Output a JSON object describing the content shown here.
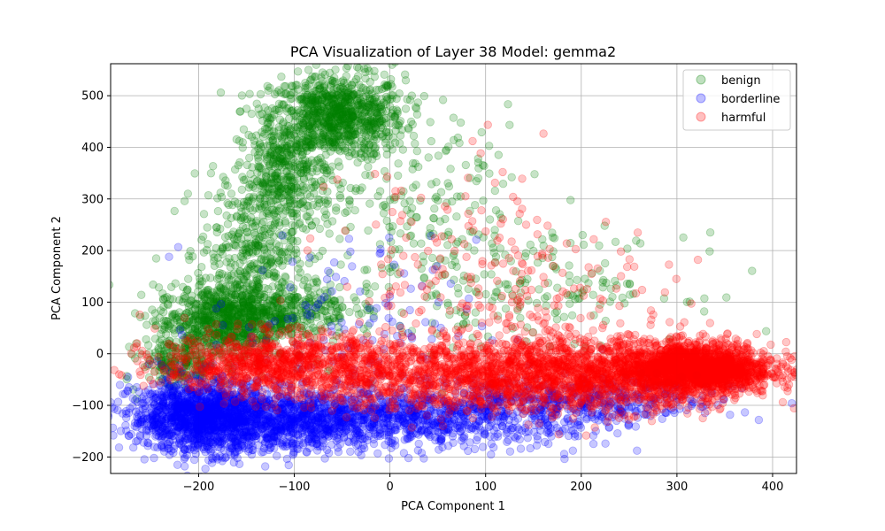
{
  "chart_data": {
    "type": "scatter",
    "title": "PCA Visualization of Layer 38 Model: gemma2",
    "xlabel": "PCA Component 1",
    "ylabel": "PCA Component 2",
    "xlim": [
      -292,
      425
    ],
    "ylim": [
      -232,
      562
    ],
    "xticks": [
      -200,
      -100,
      0,
      100,
      200,
      300,
      400
    ],
    "yticks": [
      -200,
      -100,
      0,
      100,
      200,
      300,
      400,
      500
    ],
    "xtick_labels": [
      "−200",
      "−100",
      "0",
      "100",
      "200",
      "300",
      "400"
    ],
    "ytick_labels": [
      "−200",
      "−100",
      "0",
      "100",
      "200",
      "300",
      "400",
      "500"
    ],
    "grid": true,
    "legend_position": "top-right",
    "marker_alpha": 0.22,
    "series": [
      {
        "name": "benign",
        "color": "#008000",
        "clusters": [
          {
            "cx": -55,
            "cy": 460,
            "sx": 35,
            "sy": 40,
            "n": 900
          },
          {
            "cx": -110,
            "cy": 340,
            "sx": 25,
            "sy": 60,
            "n": 450
          },
          {
            "cx": -150,
            "cy": 200,
            "sx": 25,
            "sy": 60,
            "n": 300
          },
          {
            "cx": -175,
            "cy": 60,
            "sx": 35,
            "sy": 35,
            "n": 700
          },
          {
            "cx": -120,
            "cy": 90,
            "sx": 40,
            "sy": 30,
            "n": 400
          },
          {
            "cx": 30,
            "cy": 250,
            "sx": 70,
            "sy": 120,
            "n": 260
          },
          {
            "cx": 170,
            "cy": 130,
            "sx": 70,
            "sy": 50,
            "n": 140
          },
          {
            "cx": -220,
            "cy": -20,
            "sx": 20,
            "sy": 25,
            "n": 200
          }
        ]
      },
      {
        "name": "borderline",
        "color": "#0000ff",
        "clusters": [
          {
            "cx": -200,
            "cy": -120,
            "sx": 35,
            "sy": 35,
            "n": 1200
          },
          {
            "cx": -110,
            "cy": -130,
            "sx": 60,
            "sy": 30,
            "n": 1000
          },
          {
            "cx": 50,
            "cy": -120,
            "sx": 90,
            "sy": 30,
            "n": 900
          },
          {
            "cx": 220,
            "cy": -90,
            "sx": 70,
            "sy": 22,
            "n": 300
          },
          {
            "cx": -50,
            "cy": 60,
            "sx": 70,
            "sy": 80,
            "n": 120
          }
        ]
      },
      {
        "name": "harmful",
        "color": "#ff0000",
        "clusters": [
          {
            "cx": 320,
            "cy": -30,
            "sx": 40,
            "sy": 25,
            "n": 1800
          },
          {
            "cx": 200,
            "cy": -40,
            "sx": 70,
            "sy": 35,
            "n": 1200
          },
          {
            "cx": 50,
            "cy": -40,
            "sx": 80,
            "sy": 35,
            "n": 900
          },
          {
            "cx": -120,
            "cy": -20,
            "sx": 60,
            "sy": 30,
            "n": 900
          },
          {
            "cx": 150,
            "cy": 90,
            "sx": 90,
            "sy": 70,
            "n": 200
          },
          {
            "cx": 60,
            "cy": 250,
            "sx": 70,
            "sy": 80,
            "n": 60
          }
        ]
      }
    ]
  }
}
